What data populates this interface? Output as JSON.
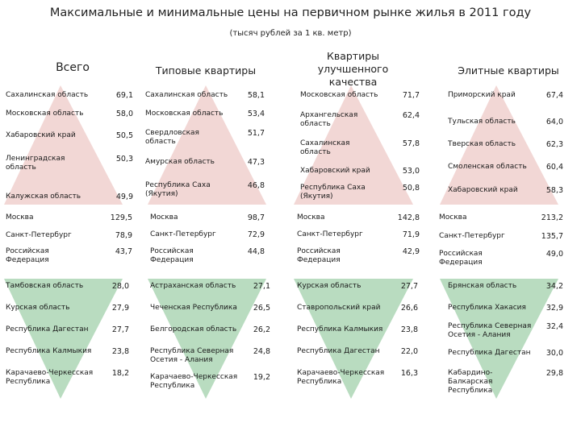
{
  "title": "Максимальные и минимальные цены на первичном  рынке жилья в 2011 году",
  "subtitle": "(тысяч рублей за 1 кв. метр)",
  "colors": {
    "top_triangle": "#f2d7d5",
    "bottom_triangle": "#b9dcc0"
  },
  "columns": [
    {
      "heading": "Всего",
      "top": [
        {
          "name": "Сахалинская область",
          "value": "69,1"
        },
        {
          "name": "Московская область",
          "value": "58,0"
        },
        {
          "name": "Хабаровский край",
          "value": "50,5"
        },
        {
          "name": "Ленинградская область",
          "value": "50,3"
        },
        {
          "name": "Калужская область",
          "value": "49,9"
        }
      ],
      "mid": [
        {
          "name": "Москва",
          "value": "129,5"
        },
        {
          "name": "Санкт-Петербург",
          "value": "78,9"
        },
        {
          "name": "Российская Федерация",
          "value": "43,7"
        }
      ],
      "bottom": [
        {
          "name": "Тамбовская область",
          "value": "28,0"
        },
        {
          "name": "Курская область",
          "value": "27,9"
        },
        {
          "name": "Республика Дагестан",
          "value": "27,7"
        },
        {
          "name": "Республика Калмыкия",
          "value": "23,8"
        },
        {
          "name": "Карачаево-Черкесская Республика",
          "value": "18,2"
        }
      ]
    },
    {
      "heading": "Типовые квартиры",
      "top": [
        {
          "name": "Сахалинская область",
          "value": "58,1"
        },
        {
          "name": "Московская область",
          "value": "53,4"
        },
        {
          "name": "Свердловская область",
          "value": "51,7"
        },
        {
          "name": "Амурская область",
          "value": "47,3"
        },
        {
          "name": "Республика Саха (Якутия)",
          "value": "46,8"
        }
      ],
      "mid": [
        {
          "name": "Москва",
          "value": "98,7"
        },
        {
          "name": "Санкт-Петербург",
          "value": "72,9"
        },
        {
          "name": "Российская Федерация",
          "value": "44,8"
        }
      ],
      "bottom": [
        {
          "name": "Астраханская область",
          "value": "27,1"
        },
        {
          "name": "Чеченская Республика",
          "value": "26,5"
        },
        {
          "name": "Белгородская область",
          "value": "26,2"
        },
        {
          "name": "Республика Северная Осетия - Алания",
          "value": "24,8"
        },
        {
          "name": "Карачаево-Черкесская Республика",
          "value": "19,2"
        }
      ]
    },
    {
      "heading": "Квартиры улучшенного качества",
      "top": [
        {
          "name": "Московская область",
          "value": "71,7"
        },
        {
          "name": "Архангельская область",
          "value": "62,4"
        },
        {
          "name": "Сахалинская область",
          "value": "57,8"
        },
        {
          "name": "Хабаровский край",
          "value": "53,0"
        },
        {
          "name": "Республика Саха (Якутия)",
          "value": "50,8"
        }
      ],
      "mid": [
        {
          "name": "Москва",
          "value": "142,8"
        },
        {
          "name": "Санкт-Петербург",
          "value": "71,9"
        },
        {
          "name": "Российская Федерация",
          "value": "42,9"
        }
      ],
      "bottom": [
        {
          "name": "Курская область",
          "value": "27,7"
        },
        {
          "name": "Ставропольский край",
          "value": "26,6"
        },
        {
          "name": "Республика Калмыкия",
          "value": "23,8"
        },
        {
          "name": "Республика Дагестан",
          "value": "22,0"
        },
        {
          "name": "Карачаево-Черкесская Республика",
          "value": "16,3"
        }
      ]
    },
    {
      "heading": "Элитные квартиры",
      "top": [
        {
          "name": "Приморский край",
          "value": "67,4"
        },
        {
          "name": "Тульская область",
          "value": "64,0"
        },
        {
          "name": "Тверская область",
          "value": "62,3"
        },
        {
          "name": "Смоленская область",
          "value": "60,4"
        },
        {
          "name": "Хабаровский край",
          "value": "58,3"
        }
      ],
      "mid": [
        {
          "name": "Москва",
          "value": "213,2"
        },
        {
          "name": "Санкт-Петербург",
          "value": "135,7"
        },
        {
          "name": "Российская Федерация",
          "value": "49,0"
        }
      ],
      "bottom": [
        {
          "name": "Брянская область",
          "value": "34,2"
        },
        {
          "name": "Республика Хакасия",
          "value": "32,9"
        },
        {
          "name": "Республика Северная Осетия - Алания",
          "value": "32,4"
        },
        {
          "name": "Республика Дагестан",
          "value": "30,0"
        },
        {
          "name": "Кабардино-Балкарская Республика",
          "value": "29,8"
        }
      ]
    }
  ]
}
